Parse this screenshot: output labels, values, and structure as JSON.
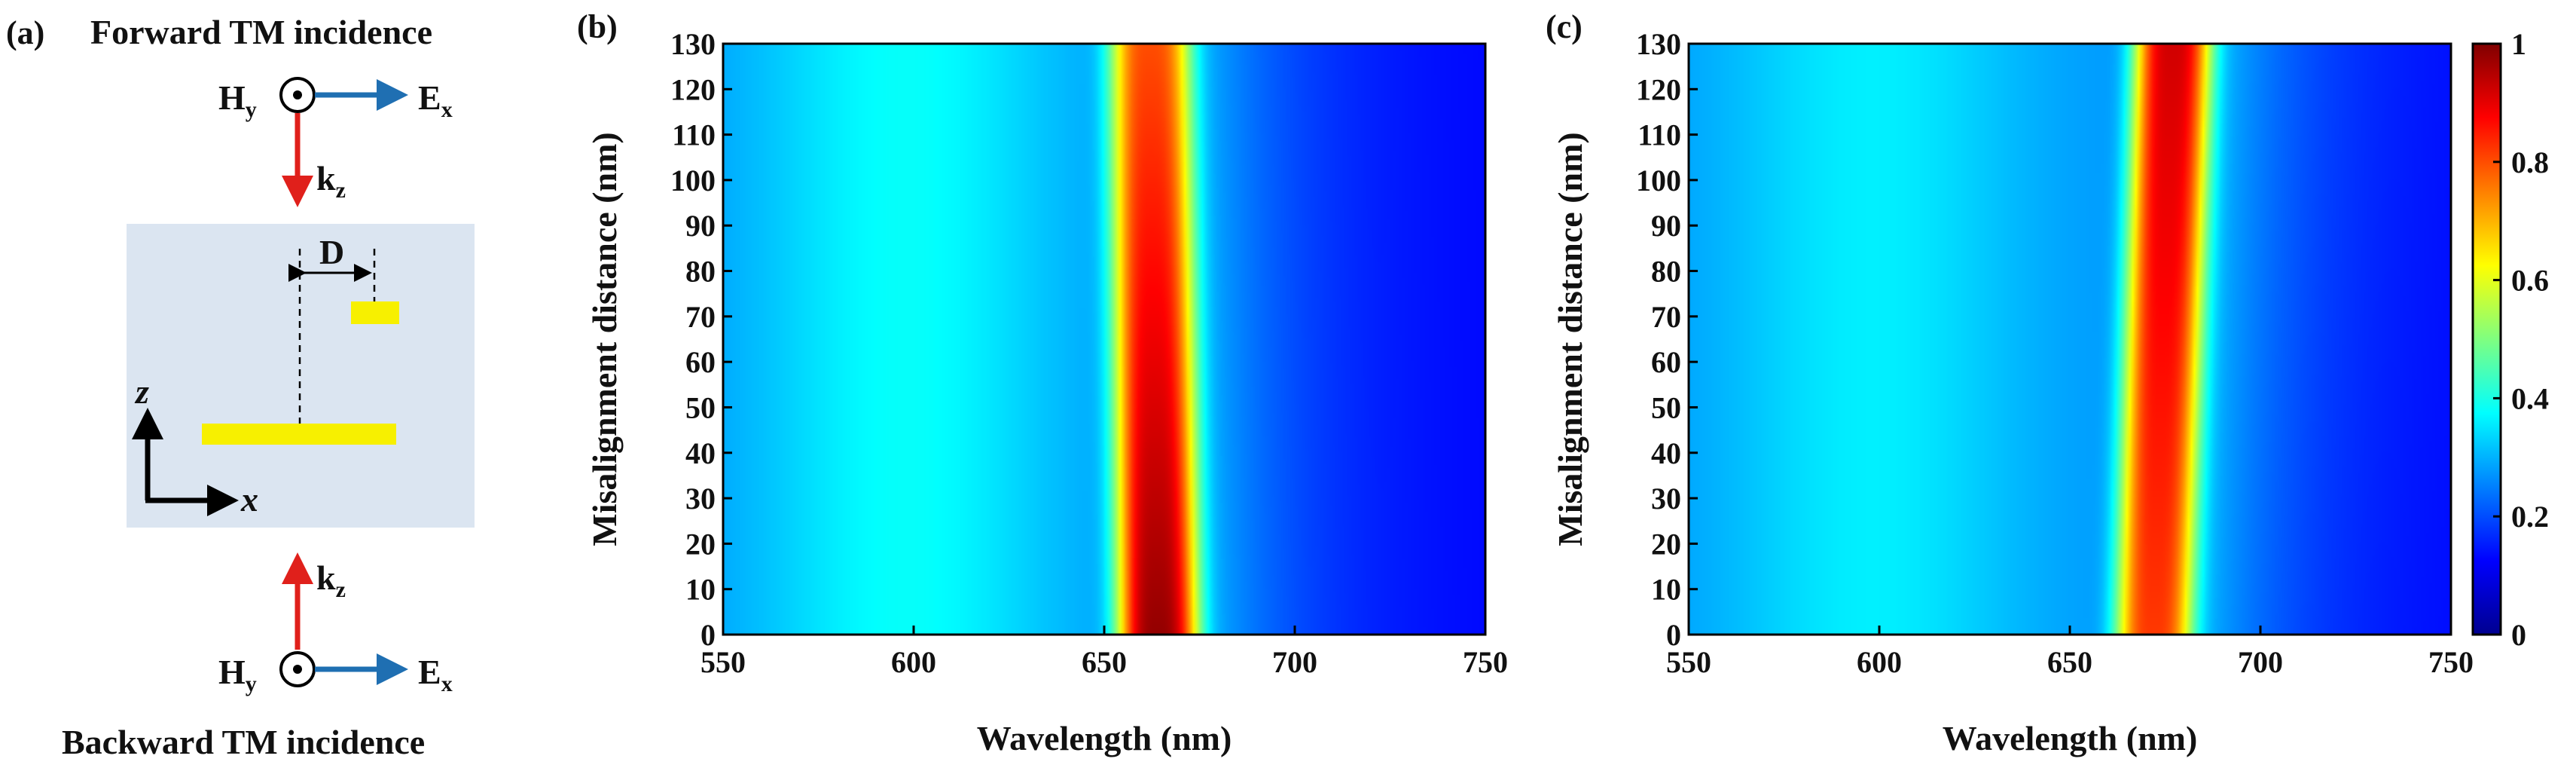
{
  "panel_a": {
    "label": "(a)",
    "top_title": "Forward TM incidence",
    "bottom_title": "Backward TM incidence",
    "h_field": "H",
    "h_sub": "y",
    "e_field": "E",
    "e_sub": "x",
    "k_vector": "k",
    "k_sub": "z",
    "gap_label": "D",
    "axis_z": "z",
    "axis_x": "x",
    "colors": {
      "substrate": "#dbe5f1",
      "metal": "#f7f000",
      "k_arrow": "#e0201b",
      "e_arrow": "#1f6fb2"
    }
  },
  "chart_data": [
    {
      "type": "heatmap",
      "panel": "(b)",
      "title": "",
      "xlabel": "Wavelength (nm)",
      "ylabel": "Misalignment distance (nm)",
      "xlim": [
        550,
        750
      ],
      "ylim": [
        0,
        130
      ],
      "xticks": [
        "550",
        "600",
        "650",
        "700",
        "750"
      ],
      "yticks": [
        "0",
        "10",
        "20",
        "30",
        "40",
        "50",
        "60",
        "70",
        "80",
        "90",
        "100",
        "110",
        "120",
        "130"
      ],
      "peak": {
        "wavelength_at_0": 664,
        "wavelength_at_130": 662,
        "width_nm": 21,
        "max_value_at_0": 0.98,
        "max_value_at_130": 0.8
      },
      "background": {
        "value_near_600": 0.38,
        "value_at_750": 0.12
      }
    },
    {
      "type": "heatmap",
      "panel": "(c)",
      "title": "",
      "xlabel": "Wavelength (nm)",
      "ylabel": "Misalignment distance (nm)",
      "xlim": [
        550,
        750
      ],
      "ylim": [
        0,
        130
      ],
      "xticks": [
        "550",
        "600",
        "650",
        "700",
        "750"
      ],
      "yticks": [
        "0",
        "10",
        "20",
        "30",
        "40",
        "50",
        "60",
        "70",
        "80",
        "90",
        "100",
        "110",
        "120",
        "130"
      ],
      "peak": {
        "wavelength_at_0": 672,
        "wavelength_at_130": 677,
        "width_nm": 20,
        "max_value_at_0": 0.82,
        "max_value_at_130": 0.92
      },
      "background": {
        "value_near_600": 0.36,
        "value_at_750": 0.12
      },
      "colorbar": {
        "range": [
          0,
          1
        ],
        "ticks": [
          "0",
          "0.2",
          "0.4",
          "0.6",
          "0.8",
          "1"
        ],
        "colormap": "jet"
      }
    }
  ]
}
